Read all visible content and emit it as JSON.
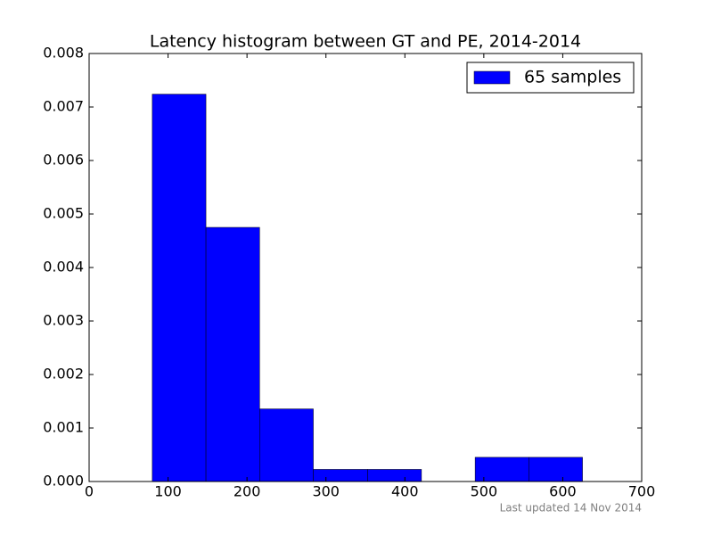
{
  "chart_data": {
    "type": "histogram",
    "title": "Latency histogram between GT and PE, 2014-2014",
    "bins": [
      80,
      148,
      216,
      284,
      353,
      421,
      489,
      557,
      625
    ],
    "series": [
      {
        "name": "65 samples",
        "color": "#0000ff",
        "values": [
          0.00724,
          0.00475,
          0.001357,
          0.000226,
          0.000226,
          0,
          0.000452,
          0.000452
        ]
      }
    ],
    "xlim": [
      0,
      700
    ],
    "xticks": [
      0,
      100,
      200,
      300,
      400,
      500,
      600,
      700
    ],
    "ylim": [
      0,
      0.008
    ],
    "yticks": [
      {
        "value": 0,
        "label": "0.000"
      },
      {
        "value": 0.001,
        "label": "0.001"
      },
      {
        "value": 0.002,
        "label": "0.002"
      },
      {
        "value": 0.003,
        "label": "0.003"
      },
      {
        "value": 0.004,
        "label": "0.004"
      },
      {
        "value": 0.005,
        "label": "0.005"
      },
      {
        "value": 0.006,
        "label": "0.006"
      },
      {
        "value": 0.007,
        "label": "0.007"
      },
      {
        "value": 0.008,
        "label": "0.008"
      }
    ],
    "legend": "upper right",
    "annotation": "Last updated 14 Nov 2014"
  }
}
